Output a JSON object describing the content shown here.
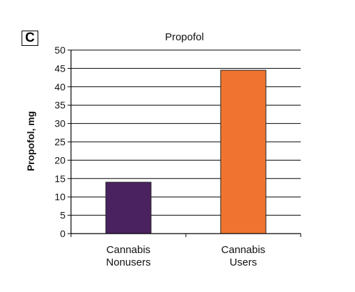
{
  "panel_label": "C",
  "chart_data": {
    "type": "bar",
    "title": "Propofol",
    "xlabel": "",
    "ylabel": "Propofol, mg",
    "categories": [
      [
        "Cannabis",
        "Nonusers"
      ],
      [
        "Cannabis",
        "Users"
      ]
    ],
    "values": [
      14,
      44.5
    ],
    "colors": [
      "#4b2260",
      "#f07430"
    ],
    "ylim": [
      0,
      50
    ],
    "yticks": [
      0,
      5,
      10,
      15,
      20,
      25,
      30,
      35,
      40,
      45,
      50
    ],
    "grid": true,
    "legend": "none"
  }
}
